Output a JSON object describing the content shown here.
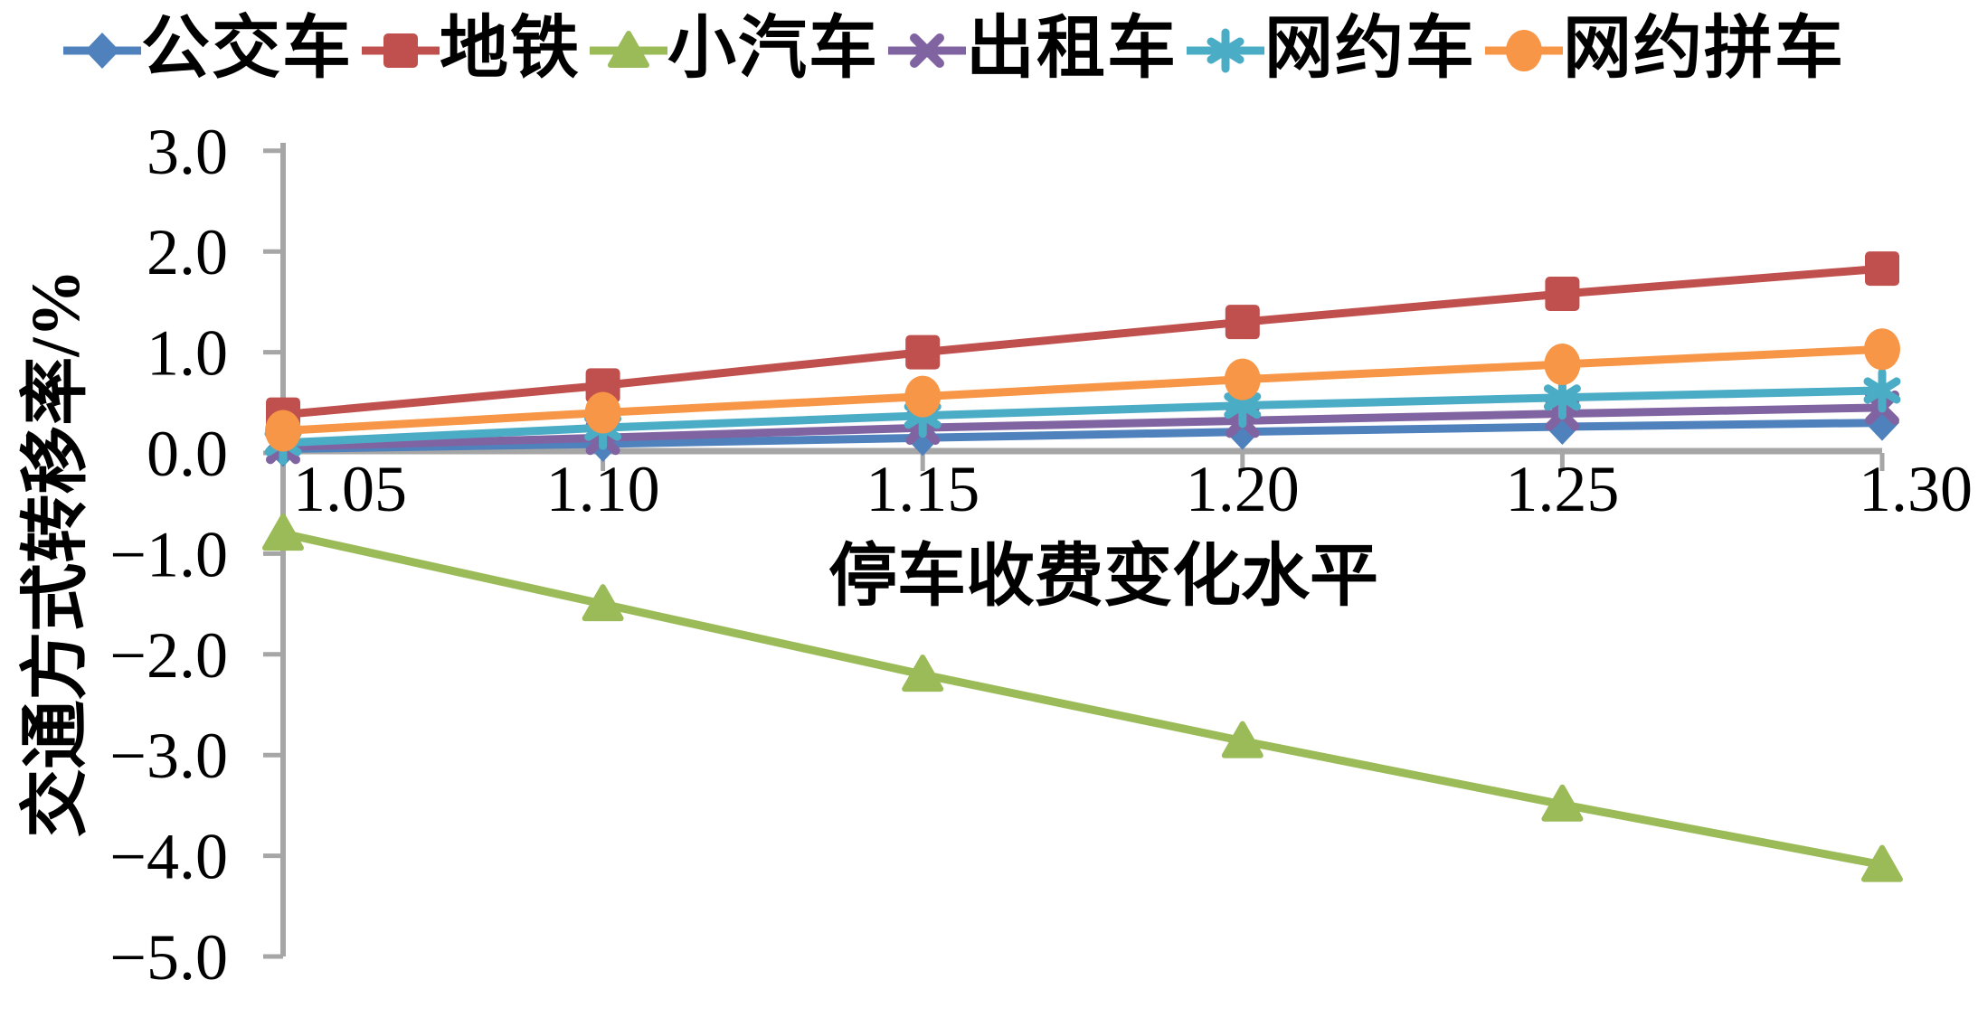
{
  "figure": {
    "background": "#FFFFFF",
    "axis_color": "#A6A6A6",
    "text_color": "#000000"
  },
  "chart_data": {
    "type": "line",
    "title": "",
    "xlabel": "停车收费变化水平",
    "ylabel": "交通方式转移率/%",
    "x": [
      1.05,
      1.1,
      1.15,
      1.2,
      1.25,
      1.3
    ],
    "x_tick_labels": [
      "1.05",
      "1.10",
      "1.15",
      "1.20",
      "1.25",
      "1.30"
    ],
    "y_ticks": [
      3.0,
      2.0,
      1.0,
      0.0,
      -1.0,
      -2.0,
      -3.0,
      -4.0,
      -5.0
    ],
    "y_tick_labels": [
      "3.0",
      "2.0",
      "1.0",
      "0.0",
      "−1.0",
      "−2.0",
      "−3.0",
      "−4.0",
      "−5.0"
    ],
    "xlim": [
      1.05,
      1.3
    ],
    "ylim": [
      -5.0,
      3.0
    ],
    "grid": false,
    "legend_position": "top",
    "series": [
      {
        "id": "bus",
        "name": "公交车",
        "marker": "diamond",
        "color": "#4F81BD",
        "values": [
          0.04,
          0.09,
          0.15,
          0.21,
          0.26,
          0.3
        ]
      },
      {
        "id": "subway",
        "name": "地铁",
        "marker": "square",
        "color": "#C0504D",
        "values": [
          0.38,
          0.67,
          1.0,
          1.3,
          1.58,
          1.83
        ]
      },
      {
        "id": "private-car",
        "name": "小汽车",
        "marker": "triangle",
        "color": "#9BBB59",
        "values": [
          -0.8,
          -1.5,
          -2.2,
          -2.86,
          -3.49,
          -4.09
        ]
      },
      {
        "id": "taxi",
        "name": "出租车",
        "marker": "x",
        "color": "#8064A2",
        "values": [
          0.06,
          0.15,
          0.25,
          0.32,
          0.39,
          0.45
        ]
      },
      {
        "id": "ride-hailing",
        "name": "网约车",
        "marker": "asterisk",
        "color": "#4BACC6",
        "values": [
          0.1,
          0.25,
          0.37,
          0.47,
          0.55,
          0.62
        ]
      },
      {
        "id": "ride-hailing-carpool",
        "name": "网约拼车",
        "marker": "circle",
        "color": "#F79646",
        "values": [
          0.22,
          0.4,
          0.56,
          0.73,
          0.88,
          1.03
        ]
      }
    ]
  }
}
